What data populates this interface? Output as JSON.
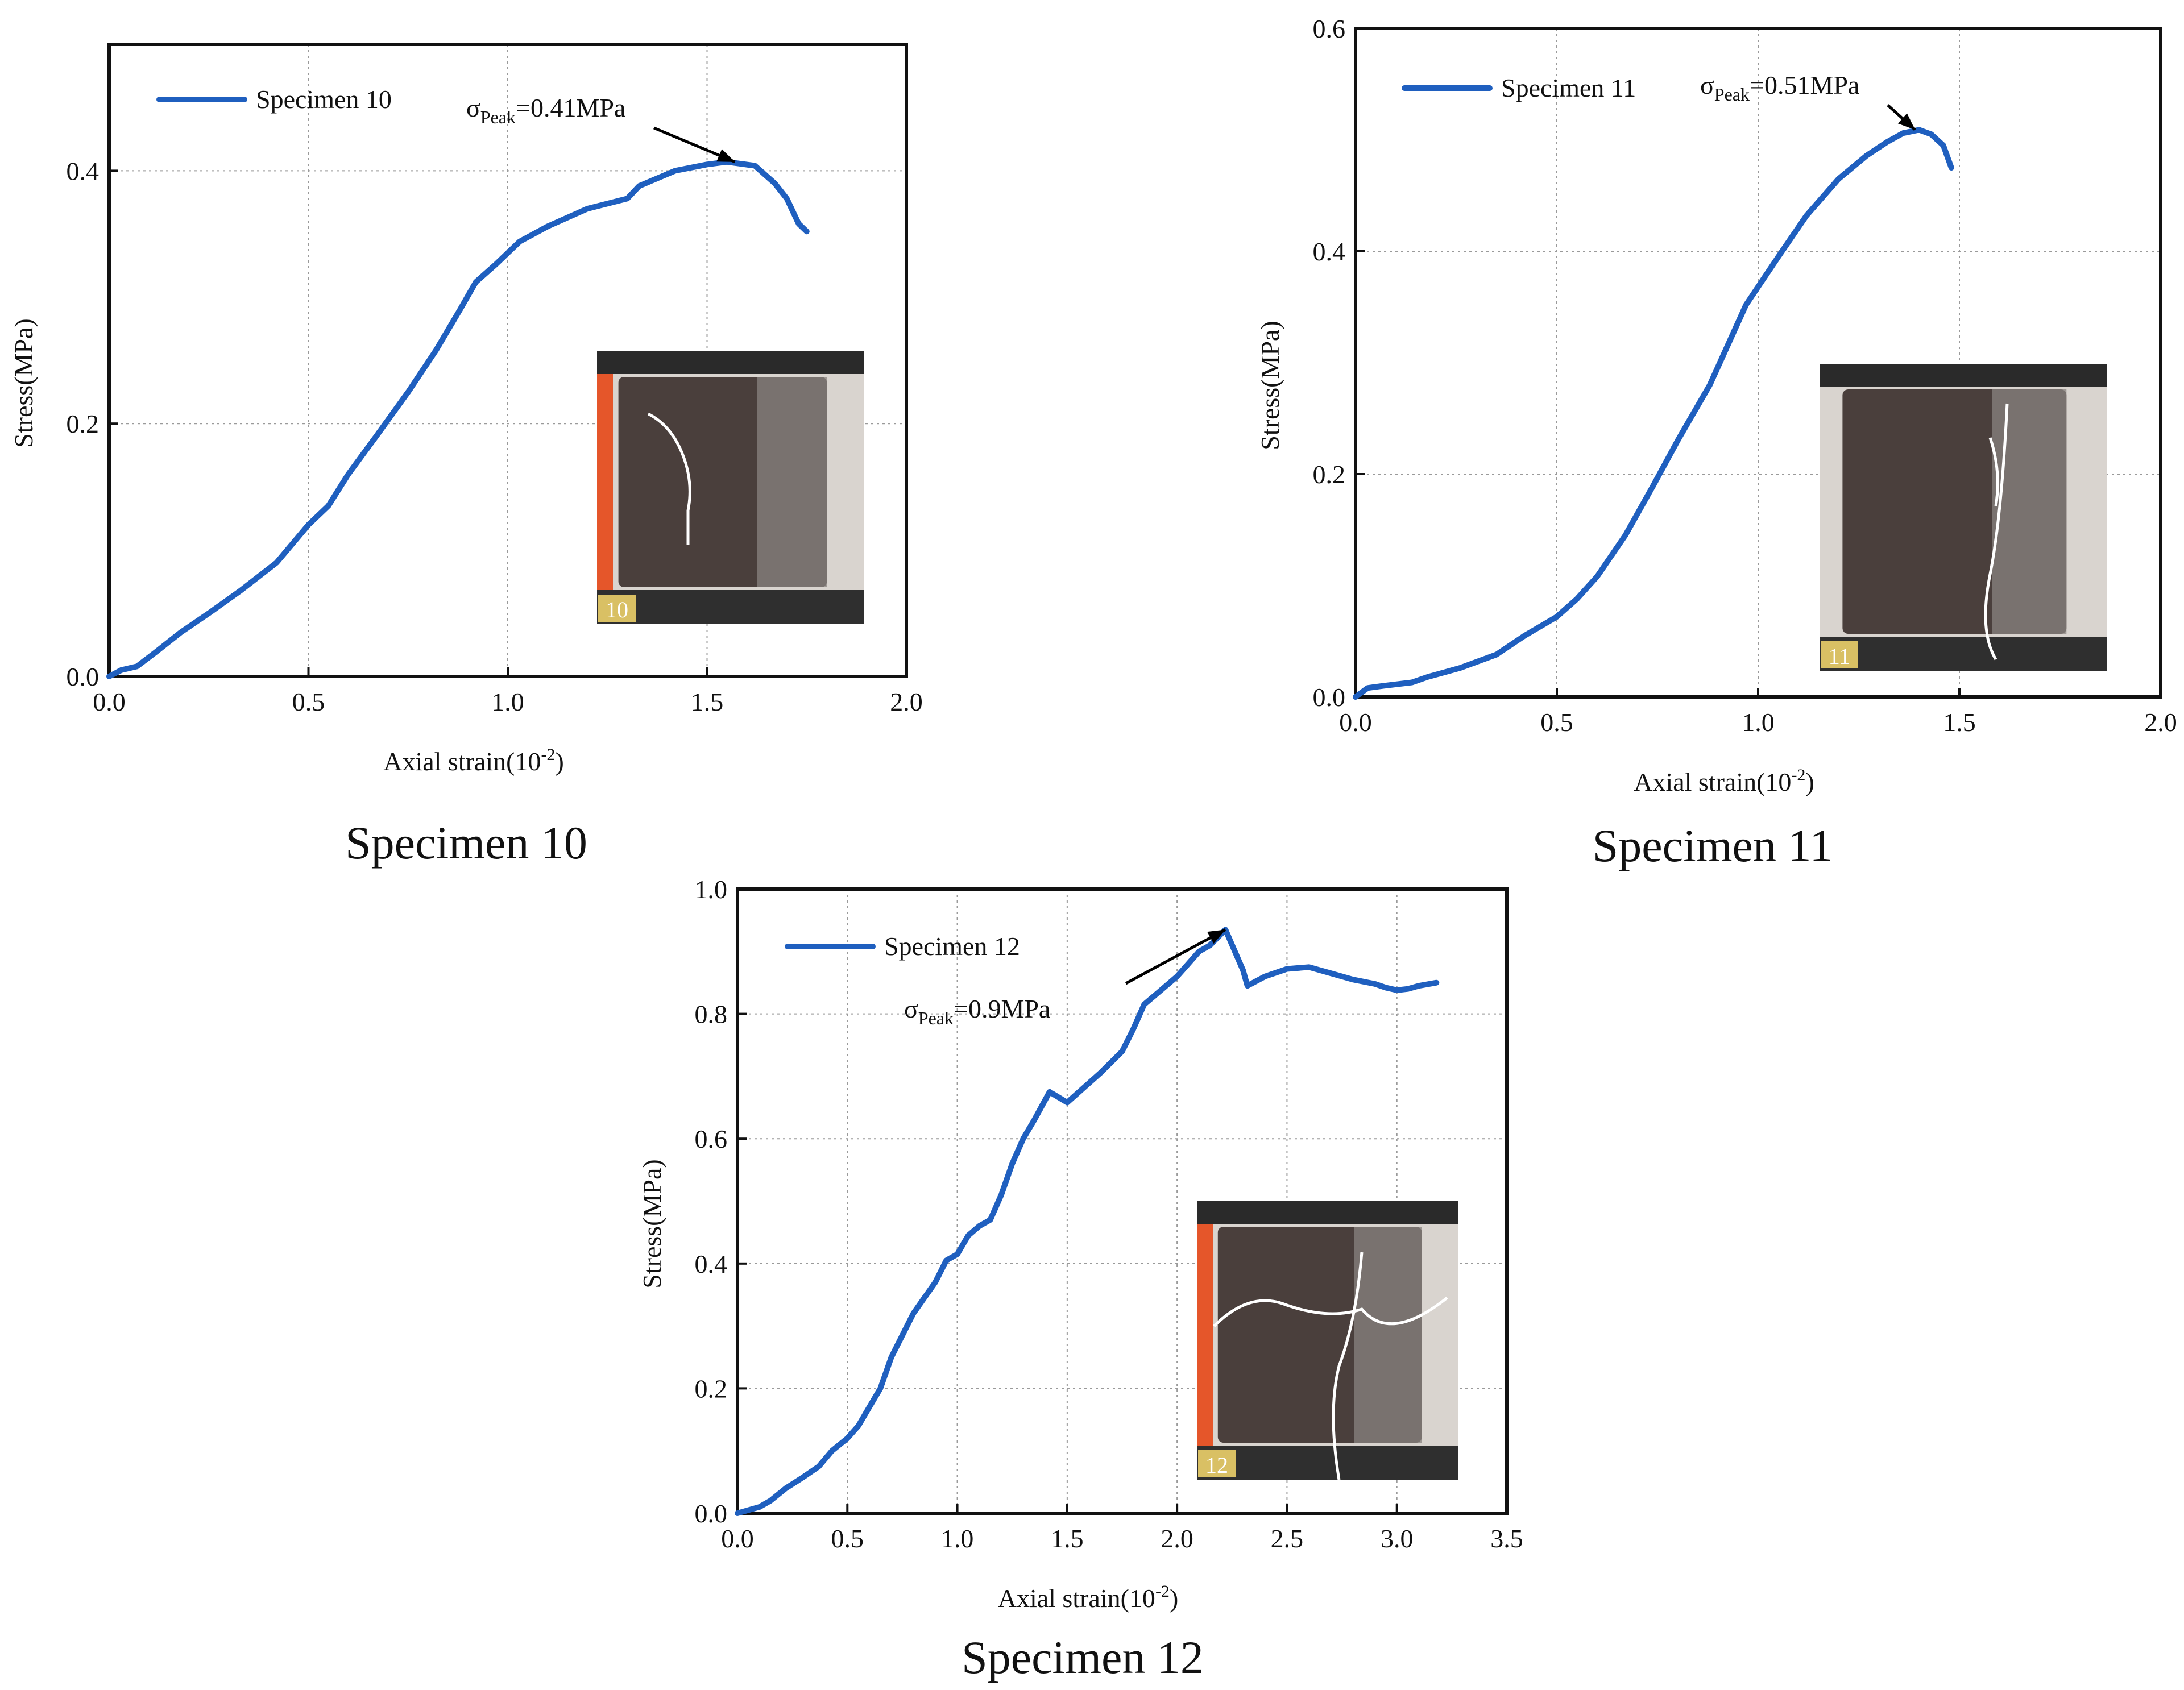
{
  "chart_data": [
    {
      "type": "line",
      "caption": "Specimen 10",
      "xlabel": "Axial strain(10",
      "xlabel_sup": "-2",
      "xlabel_end": ")",
      "ylabel": "Stress(MPa)",
      "xlim": [
        0,
        2.0
      ],
      "ylim": [
        0,
        0.5
      ],
      "xticks": [
        0,
        0.5,
        1.0,
        1.5,
        2.0
      ],
      "xtick_labels": [
        "0.0",
        "0.5",
        "1.0",
        "1.5",
        "2.0"
      ],
      "yticks": [
        0,
        0.2,
        0.4
      ],
      "ytick_labels": [
        "0.0",
        "0.2",
        "0.4"
      ],
      "grid": true,
      "legend": "top-left",
      "series": [
        {
          "name": "Specimen 10",
          "color": "#1f5fbf",
          "x": [
            0,
            0.03,
            0.07,
            0.12,
            0.18,
            0.25,
            0.33,
            0.42,
            0.5,
            0.55,
            0.6,
            0.67,
            0.75,
            0.82,
            0.88,
            0.92,
            0.97,
            1.03,
            1.1,
            1.2,
            1.3,
            1.33,
            1.42,
            1.5,
            1.55,
            1.62,
            1.67,
            1.7,
            1.73,
            1.75
          ],
          "y": [
            0,
            0.005,
            0.008,
            0.02,
            0.035,
            0.05,
            0.068,
            0.09,
            0.12,
            0.135,
            0.16,
            0.19,
            0.225,
            0.258,
            0.29,
            0.312,
            0.326,
            0.344,
            0.356,
            0.37,
            0.378,
            0.388,
            0.4,
            0.405,
            0.407,
            0.404,
            0.39,
            0.378,
            0.358,
            0.352
          ]
        }
      ],
      "annotation": {
        "symbol": "σ",
        "sub": "Peak",
        "text": "=0.41MPa",
        "x": 1.57,
        "y": 0.407
      },
      "photo_label": "10"
    },
    {
      "type": "line",
      "caption": "Specimen 11",
      "xlabel": "Axial strain(10",
      "xlabel_sup": "-2",
      "xlabel_end": ")",
      "ylabel": "Stress(MPa)",
      "xlim": [
        0,
        2.0
      ],
      "ylim": [
        0,
        0.6
      ],
      "xticks": [
        0,
        0.5,
        1.0,
        1.5,
        2.0
      ],
      "xtick_labels": [
        "0.0",
        "0.5",
        "1.0",
        "1.5",
        "2.0"
      ],
      "yticks": [
        0,
        0.2,
        0.4,
        0.6
      ],
      "ytick_labels": [
        "0.0",
        "0.2",
        "0.4",
        "0.6"
      ],
      "grid": true,
      "legend": "top-left",
      "series": [
        {
          "name": "Specimen 11",
          "color": "#1f5fbf",
          "x": [
            0,
            0.03,
            0.07,
            0.14,
            0.18,
            0.26,
            0.35,
            0.42,
            0.5,
            0.55,
            0.6,
            0.67,
            0.74,
            0.8,
            0.88,
            0.97,
            1.05,
            1.12,
            1.2,
            1.27,
            1.32,
            1.36,
            1.4,
            1.43,
            1.46,
            1.48
          ],
          "y": [
            0,
            0.008,
            0.01,
            0.013,
            0.018,
            0.026,
            0.038,
            0.055,
            0.072,
            0.088,
            0.108,
            0.145,
            0.19,
            0.23,
            0.28,
            0.352,
            0.395,
            0.432,
            0.465,
            0.486,
            0.498,
            0.506,
            0.509,
            0.505,
            0.495,
            0.475
          ]
        }
      ],
      "annotation": {
        "symbol": "σ",
        "sub": "Peak",
        "text": "=0.51MPa",
        "x": 1.39,
        "y": 0.509
      },
      "photo_label": "11"
    },
    {
      "type": "line",
      "caption": "Specimen 12",
      "xlabel": "Axial strain(10",
      "xlabel_sup": "-2",
      "xlabel_end": ")",
      "ylabel": "Stress(MPa)",
      "xlim": [
        0,
        3.5
      ],
      "ylim": [
        0,
        1.0
      ],
      "xticks": [
        0,
        0.5,
        1.0,
        1.5,
        2.0,
        2.5,
        3.0,
        3.5
      ],
      "xtick_labels": [
        "0.0",
        "0.5",
        "1.0",
        "1.5",
        "2.0",
        "2.5",
        "3.0",
        "3.5"
      ],
      "yticks": [
        0,
        0.2,
        0.4,
        0.6,
        0.8,
        1.0
      ],
      "ytick_labels": [
        "0.0",
        "0.2",
        "0.4",
        "0.6",
        "0.8",
        "1.0"
      ],
      "grid": true,
      "legend": "top-left",
      "series": [
        {
          "name": "Specimen 12",
          "color": "#1f5fbf",
          "x": [
            0,
            0.05,
            0.1,
            0.15,
            0.22,
            0.3,
            0.37,
            0.43,
            0.5,
            0.55,
            0.6,
            0.65,
            0.7,
            0.8,
            0.9,
            0.95,
            1.0,
            1.05,
            1.1,
            1.15,
            1.2,
            1.25,
            1.3,
            1.35,
            1.42,
            1.5,
            1.57,
            1.65,
            1.75,
            1.8,
            1.85,
            1.9,
            2.0,
            2.05,
            2.1,
            2.15,
            2.22,
            2.3,
            2.32,
            2.4,
            2.5,
            2.6,
            2.7,
            2.8,
            2.9,
            2.95,
            3.0,
            3.05,
            3.1,
            3.18
          ],
          "y": [
            0,
            0.005,
            0.01,
            0.02,
            0.04,
            0.058,
            0.075,
            0.1,
            0.12,
            0.14,
            0.17,
            0.2,
            0.25,
            0.32,
            0.37,
            0.405,
            0.415,
            0.445,
            0.46,
            0.47,
            0.51,
            0.56,
            0.6,
            0.63,
            0.675,
            0.658,
            0.68,
            0.705,
            0.74,
            0.775,
            0.815,
            0.83,
            0.86,
            0.88,
            0.9,
            0.91,
            0.935,
            0.87,
            0.845,
            0.86,
            0.872,
            0.875,
            0.865,
            0.855,
            0.848,
            0.842,
            0.838,
            0.84,
            0.845,
            0.85
          ]
        }
      ],
      "annotation": {
        "symbol": "σ",
        "sub": "Peak",
        "text": "=0.9MPa",
        "x": 2.22,
        "y": 0.935
      },
      "photo_label": "12"
    }
  ]
}
